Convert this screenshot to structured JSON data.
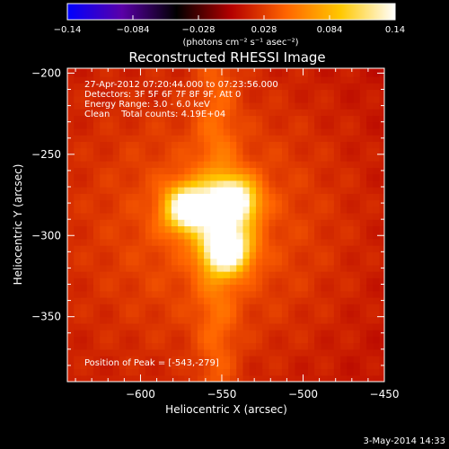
{
  "chart_data": {
    "type": "heatmap",
    "title": "Reconstructed RHESSI Image",
    "xlabel": "Heliocentric X (arcsec)",
    "ylabel": "Heliocentric Y (arcsec)",
    "xlim": [
      -645,
      -450
    ],
    "ylim": [
      -390,
      -197
    ],
    "x_ticks": [
      {
        "value": -600,
        "label": "−600"
      },
      {
        "value": -550,
        "label": "−550"
      },
      {
        "value": -500,
        "label": "−500"
      },
      {
        "value": -450,
        "label": "−450"
      }
    ],
    "y_ticks": [
      {
        "value": -200,
        "label": "−200"
      },
      {
        "value": -250,
        "label": "−250"
      },
      {
        "value": -300,
        "label": "−300"
      },
      {
        "value": -350,
        "label": "−350"
      }
    ],
    "colorbar": {
      "range": [
        -0.14,
        0.14
      ],
      "units": "(photons cm⁻² s⁻¹ asec⁻²)",
      "tick_labels": [
        "−0.14",
        "−0.084",
        "−0.028",
        "0.028",
        "0.084",
        "0.14"
      ],
      "tick_values": [
        -0.14,
        -0.084,
        -0.028,
        0.028,
        0.084,
        0.14
      ],
      "colors": [
        "#0000ff",
        "#5a00a8",
        "#000000",
        "#b40000",
        "#ff6400",
        "#ffc800",
        "#ffffff"
      ]
    },
    "sources": [
      {
        "x": -570,
        "y": -283,
        "peak": 0.14,
        "sigma": 10
      },
      {
        "x": -543,
        "y": -279,
        "peak": 0.14,
        "sigma": 10
      },
      {
        "x": -547,
        "y": -308,
        "peak": 0.14,
        "sigma": 10
      }
    ],
    "annotations": [
      "27-Apr-2012 07:20:44.000 to 07:23:56.000",
      "Detectors: 3F 5F 6F 7F 8F 9F, Att 0",
      "Energy Range: 3.0 - 6.0 keV",
      "Clean    Total counts: 4.19E+04"
    ],
    "peak_label": "Position of Peak = [-543,-279]",
    "date_stamp": "3-May-2014 14:33"
  }
}
